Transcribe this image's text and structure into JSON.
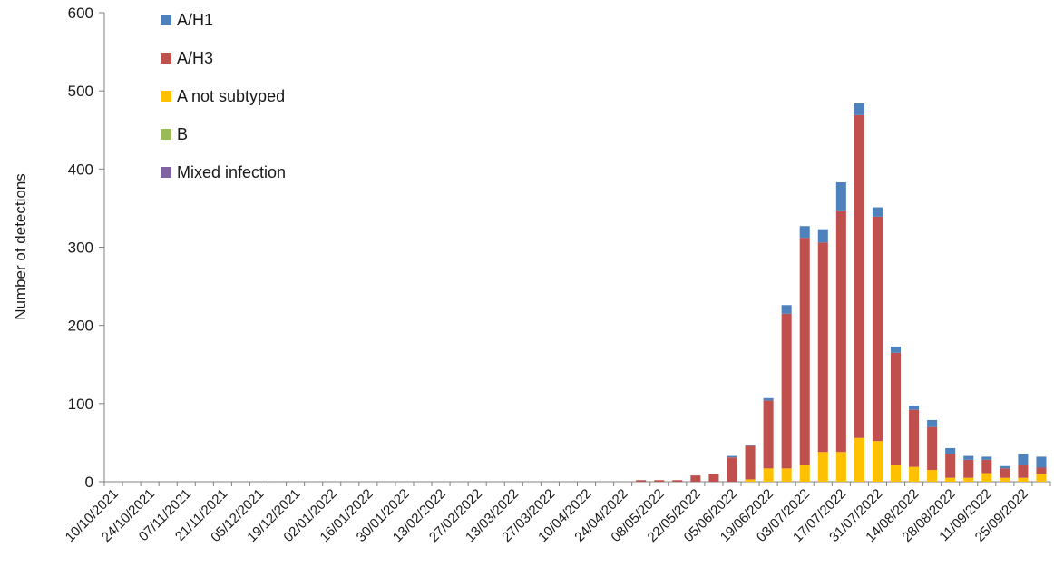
{
  "chart_data": {
    "type": "bar",
    "stacked": true,
    "ylabel": "Number of detections",
    "ylim": [
      0,
      600
    ],
    "yticks": [
      0,
      100,
      200,
      300,
      400,
      500,
      600
    ],
    "grid": false,
    "legend_position": "top-left",
    "x_tick_labels": [
      "10/10/2021",
      "24/10/2021",
      "07/11/2021",
      "21/11/2021",
      "05/12/2021",
      "19/12/2021",
      "02/01/2022",
      "16/01/2022",
      "30/01/2022",
      "13/02/2022",
      "27/02/2022",
      "13/03/2022",
      "27/03/2022",
      "10/04/2022",
      "24/04/2022",
      "08/05/2022",
      "22/05/2022",
      "05/06/2022",
      "19/06/2022",
      "03/07/2022",
      "17/07/2022",
      "31/07/2022",
      "14/08/2022",
      "28/08/2022",
      "11/09/2022",
      "25/09/2022"
    ],
    "categories": [
      "10/10/2021",
      "17/10/2021",
      "24/10/2021",
      "31/10/2021",
      "07/11/2021",
      "14/11/2021",
      "21/11/2021",
      "28/11/2021",
      "05/12/2021",
      "12/12/2021",
      "19/12/2021",
      "26/12/2021",
      "02/01/2022",
      "09/01/2022",
      "16/01/2022",
      "23/01/2022",
      "30/01/2022",
      "06/02/2022",
      "13/02/2022",
      "20/02/2022",
      "27/02/2022",
      "06/03/2022",
      "13/03/2022",
      "20/03/2022",
      "27/03/2022",
      "03/04/2022",
      "10/04/2022",
      "17/04/2022",
      "24/04/2022",
      "01/05/2022",
      "08/05/2022",
      "15/05/2022",
      "22/05/2022",
      "29/05/2022",
      "05/06/2022",
      "12/06/2022",
      "19/06/2022",
      "26/06/2022",
      "03/07/2022",
      "10/07/2022",
      "17/07/2022",
      "24/07/2022",
      "31/07/2022",
      "07/08/2022",
      "14/08/2022",
      "21/08/2022",
      "28/08/2022",
      "04/09/2022",
      "11/09/2022",
      "18/09/2022",
      "25/09/2022",
      "02/10/2022"
    ],
    "series": [
      {
        "name": "A not subtyped",
        "color": "#FFC000",
        "values": [
          0,
          0,
          0,
          0,
          0,
          0,
          0,
          0,
          0,
          0,
          0,
          0,
          0,
          0,
          0,
          0,
          0,
          0,
          0,
          0,
          0,
          0,
          0,
          0,
          0,
          0,
          0,
          0,
          0,
          0,
          0,
          0,
          0,
          0,
          0,
          3,
          17,
          17,
          22,
          38,
          38,
          56,
          52,
          22,
          19,
          15,
          5,
          5,
          11,
          5,
          5,
          10
        ]
      },
      {
        "name": "A/H3",
        "color": "#C0504D",
        "values": [
          0,
          0,
          0,
          0,
          0,
          0,
          0,
          0,
          0,
          0,
          0,
          0,
          0,
          0,
          0,
          0,
          0,
          0,
          0,
          0,
          0,
          0,
          0,
          0,
          0,
          0,
          0,
          0,
          0,
          2,
          2,
          2,
          8,
          10,
          31,
          43,
          87,
          198,
          290,
          268,
          308,
          413,
          287,
          143,
          73,
          55,
          31,
          23,
          17,
          12,
          17,
          8
        ]
      },
      {
        "name": "A/H1",
        "color": "#4F81BD",
        "values": [
          0,
          0,
          0,
          0,
          0,
          0,
          0,
          0,
          0,
          0,
          0,
          0,
          0,
          0,
          0,
          0,
          0,
          0,
          0,
          0,
          0,
          0,
          0,
          0,
          0,
          0,
          0,
          0,
          0,
          0,
          0,
          0,
          0,
          0,
          2,
          1,
          3,
          11,
          15,
          17,
          37,
          15,
          12,
          8,
          5,
          9,
          7,
          5,
          4,
          3,
          14,
          14
        ]
      },
      {
        "name": "B",
        "color": "#9BBB59",
        "values": [
          0,
          0,
          0,
          0,
          0,
          0,
          0,
          0,
          0,
          0,
          0,
          0,
          0,
          0,
          0,
          0,
          0,
          0,
          0,
          0,
          0,
          0,
          0,
          0,
          0,
          0,
          0,
          0,
          0,
          0,
          0,
          0,
          0,
          0,
          0,
          0,
          0,
          0,
          0,
          0,
          0,
          0,
          0,
          0,
          0,
          0,
          0,
          0,
          0,
          0,
          0,
          0
        ]
      },
      {
        "name": "Mixed infection",
        "color": "#8064A2",
        "values": [
          0,
          0,
          0,
          0,
          0,
          0,
          0,
          0,
          0,
          0,
          0,
          0,
          0,
          0,
          0,
          0,
          0,
          0,
          0,
          0,
          0,
          0,
          0,
          0,
          0,
          0,
          0,
          0,
          0,
          0,
          0,
          0,
          0,
          0,
          0,
          0,
          0,
          0,
          0,
          0,
          0,
          0,
          0,
          0,
          0,
          0,
          0,
          0,
          0,
          0,
          0,
          0
        ]
      }
    ],
    "legend": [
      {
        "name": "A/H1",
        "color": "#4F81BD"
      },
      {
        "name": "A/H3",
        "color": "#C0504D"
      },
      {
        "name": "A not subtyped",
        "color": "#FFC000"
      },
      {
        "name": "B",
        "color": "#9BBB59"
      },
      {
        "name": "Mixed infection",
        "color": "#8064A2"
      }
    ]
  }
}
